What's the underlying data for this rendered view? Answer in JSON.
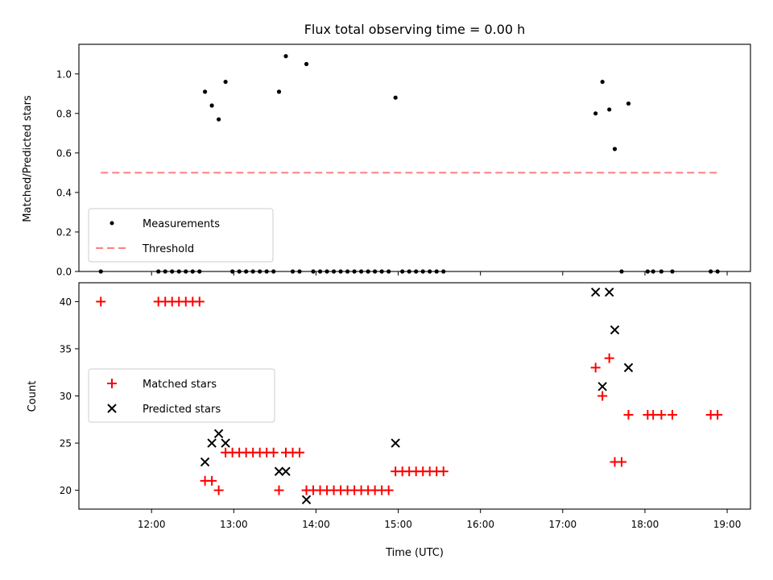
{
  "chart_data": [
    {
      "type": "scatter",
      "title": "Flux total observing time = 0.00 h",
      "xlabel": "",
      "ylabel": "Matched/Predicted stars",
      "xlim": [
        "11:07",
        "19:17"
      ],
      "ylim": [
        0,
        1.15
      ],
      "xticks": [
        "12:00",
        "13:00",
        "14:00",
        "15:00",
        "16:00",
        "17:00",
        "18:00",
        "19:00"
      ],
      "yticks": [
        "0.0",
        "0.2",
        "0.4",
        "0.6",
        "0.8",
        "1.0"
      ],
      "grid": false,
      "legend": "lower-left",
      "colors": {
        "measurements": "#000000",
        "threshold": "#ff7f7f"
      },
      "series": [
        {
          "name": "Measurements",
          "marker": "dot",
          "points": [
            [
              "11:23",
              0.0
            ],
            [
              "12:05",
              0.0
            ],
            [
              "12:10",
              0.0
            ],
            [
              "12:15",
              0.0
            ],
            [
              "12:20",
              0.0
            ],
            [
              "12:25",
              0.0
            ],
            [
              "12:30",
              0.0
            ],
            [
              "12:35",
              0.0
            ],
            [
              "12:39",
              0.91
            ],
            [
              "12:44",
              0.84
            ],
            [
              "12:49",
              0.77
            ],
            [
              "12:54",
              0.96
            ],
            [
              "12:59",
              0.0
            ],
            [
              "13:04",
              0.0
            ],
            [
              "13:09",
              0.0
            ],
            [
              "13:14",
              0.0
            ],
            [
              "13:19",
              0.0
            ],
            [
              "13:24",
              0.0
            ],
            [
              "13:29",
              0.0
            ],
            [
              "13:33",
              0.91
            ],
            [
              "13:38",
              1.09
            ],
            [
              "13:43",
              0.0
            ],
            [
              "13:48",
              0.0
            ],
            [
              "13:53",
              1.05
            ],
            [
              "13:58",
              0.0
            ],
            [
              "14:03",
              0.0
            ],
            [
              "14:08",
              0.0
            ],
            [
              "14:13",
              0.0
            ],
            [
              "14:18",
              0.0
            ],
            [
              "14:23",
              0.0
            ],
            [
              "14:28",
              0.0
            ],
            [
              "14:33",
              0.0
            ],
            [
              "14:38",
              0.0
            ],
            [
              "14:43",
              0.0
            ],
            [
              "14:48",
              0.0
            ],
            [
              "14:53",
              0.0
            ],
            [
              "14:58",
              0.88
            ],
            [
              "15:03",
              0.0
            ],
            [
              "15:08",
              0.0
            ],
            [
              "15:13",
              0.0
            ],
            [
              "15:18",
              0.0
            ],
            [
              "15:23",
              0.0
            ],
            [
              "15:28",
              0.0
            ],
            [
              "15:33",
              0.0
            ],
            [
              "17:24",
              0.8
            ],
            [
              "17:29",
              0.96
            ],
            [
              "17:34",
              0.82
            ],
            [
              "17:38",
              0.62
            ],
            [
              "17:43",
              0.0
            ],
            [
              "17:48",
              0.85
            ],
            [
              "18:02",
              0.0
            ],
            [
              "18:06",
              0.0
            ],
            [
              "18:12",
              0.0
            ],
            [
              "18:20",
              0.0
            ],
            [
              "18:48",
              0.0
            ],
            [
              "18:53",
              0.0
            ]
          ]
        },
        {
          "name": "Threshold",
          "style": "dashed",
          "points": [
            [
              "11:23",
              0.5
            ],
            [
              "18:53",
              0.5
            ]
          ]
        }
      ]
    },
    {
      "type": "scatter",
      "title": "",
      "xlabel": "Time (UTC)",
      "ylabel": "Count",
      "xlim": [
        "11:07",
        "19:17"
      ],
      "ylim": [
        18,
        42
      ],
      "xticks": [
        "12:00",
        "13:00",
        "14:00",
        "15:00",
        "16:00",
        "17:00",
        "18:00",
        "19:00"
      ],
      "yticks": [
        "20",
        "25",
        "30",
        "35",
        "40"
      ],
      "grid": false,
      "legend": "center-left",
      "colors": {
        "matched": "#ff0000",
        "predicted": "#000000"
      },
      "series": [
        {
          "name": "Matched stars",
          "marker": "plus",
          "points": [
            [
              "11:23",
              40
            ],
            [
              "12:05",
              40
            ],
            [
              "12:10",
              40
            ],
            [
              "12:15",
              40
            ],
            [
              "12:20",
              40
            ],
            [
              "12:25",
              40
            ],
            [
              "12:30",
              40
            ],
            [
              "12:35",
              40
            ],
            [
              "12:39",
              21
            ],
            [
              "12:44",
              21
            ],
            [
              "12:49",
              20
            ],
            [
              "12:54",
              24
            ],
            [
              "12:59",
              24
            ],
            [
              "13:04",
              24
            ],
            [
              "13:09",
              24
            ],
            [
              "13:14",
              24
            ],
            [
              "13:19",
              24
            ],
            [
              "13:24",
              24
            ],
            [
              "13:29",
              24
            ],
            [
              "13:33",
              20
            ],
            [
              "13:38",
              24
            ],
            [
              "13:43",
              24
            ],
            [
              "13:48",
              24
            ],
            [
              "13:53",
              20
            ],
            [
              "13:58",
              20
            ],
            [
              "14:03",
              20
            ],
            [
              "14:08",
              20
            ],
            [
              "14:13",
              20
            ],
            [
              "14:18",
              20
            ],
            [
              "14:23",
              20
            ],
            [
              "14:28",
              20
            ],
            [
              "14:33",
              20
            ],
            [
              "14:38",
              20
            ],
            [
              "14:43",
              20
            ],
            [
              "14:48",
              20
            ],
            [
              "14:53",
              20
            ],
            [
              "14:58",
              22
            ],
            [
              "15:03",
              22
            ],
            [
              "15:08",
              22
            ],
            [
              "15:13",
              22
            ],
            [
              "15:18",
              22
            ],
            [
              "15:23",
              22
            ],
            [
              "15:28",
              22
            ],
            [
              "15:33",
              22
            ],
            [
              "17:24",
              33
            ],
            [
              "17:29",
              30
            ],
            [
              "17:34",
              34
            ],
            [
              "17:38",
              23
            ],
            [
              "17:43",
              23
            ],
            [
              "17:48",
              28
            ],
            [
              "18:02",
              28
            ],
            [
              "18:06",
              28
            ],
            [
              "18:12",
              28
            ],
            [
              "18:20",
              28
            ],
            [
              "18:48",
              28
            ],
            [
              "18:53",
              28
            ]
          ]
        },
        {
          "name": "Predicted stars",
          "marker": "x",
          "points": [
            [
              "12:39",
              23
            ],
            [
              "12:44",
              25
            ],
            [
              "12:49",
              26
            ],
            [
              "12:54",
              25
            ],
            [
              "13:33",
              22
            ],
            [
              "13:38",
              22
            ],
            [
              "13:53",
              19
            ],
            [
              "14:58",
              25
            ],
            [
              "17:24",
              41
            ],
            [
              "17:29",
              31
            ],
            [
              "17:34",
              41
            ],
            [
              "17:38",
              37
            ],
            [
              "17:48",
              33
            ]
          ]
        }
      ]
    }
  ]
}
